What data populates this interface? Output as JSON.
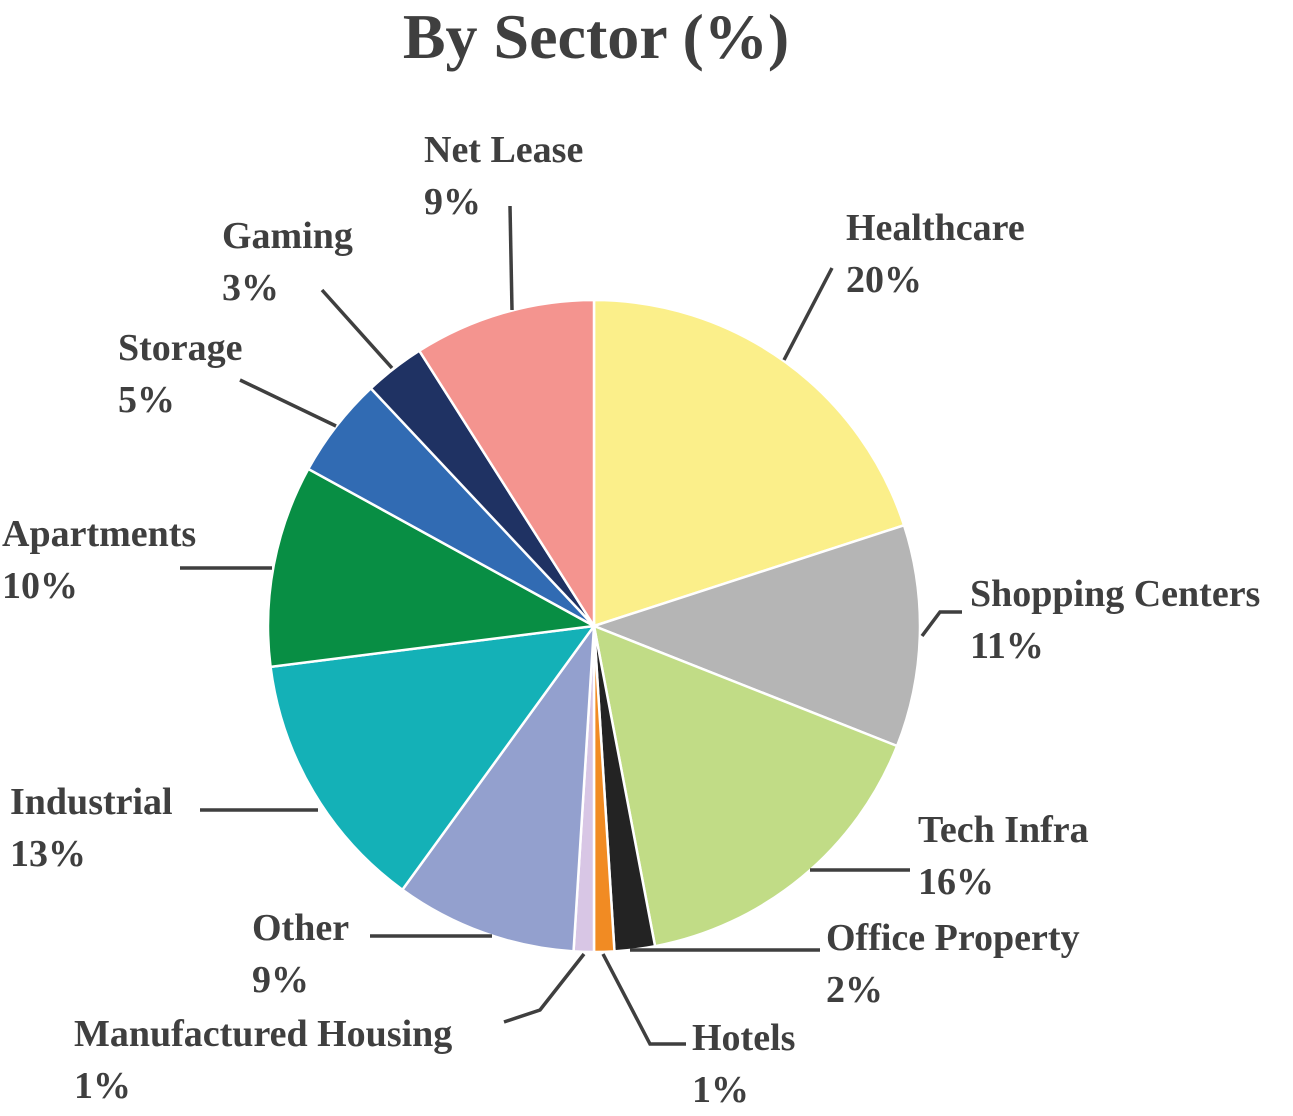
{
  "chart_data": {
    "type": "pie",
    "title": "By Sector (%)",
    "start_angle_deg": 0,
    "direction": "clockwise",
    "unit": "%",
    "slices": [
      {
        "name": "Healthcare",
        "value": 20,
        "label": "20%",
        "color": "#fbef8a"
      },
      {
        "name": "Shopping Centers",
        "value": 11,
        "label": "11%",
        "color": "#b5b5b5"
      },
      {
        "name": "Tech Infra",
        "value": 16,
        "label": "16%",
        "color": "#c1dc86"
      },
      {
        "name": "Office Property",
        "value": 2,
        "label": "2%",
        "color": "#232323"
      },
      {
        "name": "Hotels",
        "value": 1,
        "label": "1%",
        "color": "#f18b23"
      },
      {
        "name": "Manufactured Housing",
        "value": 1,
        "label": "1%",
        "color": "#d8c6e5"
      },
      {
        "name": "Other",
        "value": 9,
        "label": "9%",
        "color": "#93a0ce"
      },
      {
        "name": "Industrial",
        "value": 13,
        "label": "13%",
        "color": "#14b1b7"
      },
      {
        "name": "Apartments",
        "value": 10,
        "label": "10%",
        "color": "#088e44"
      },
      {
        "name": "Storage",
        "value": 5,
        "label": "5%",
        "color": "#316bb3"
      },
      {
        "name": "Gaming",
        "value": 3,
        "label": "3%",
        "color": "#1f3263"
      },
      {
        "name": "Net Lease",
        "value": 9,
        "label": "9%",
        "color": "#f4948f"
      }
    ]
  }
}
